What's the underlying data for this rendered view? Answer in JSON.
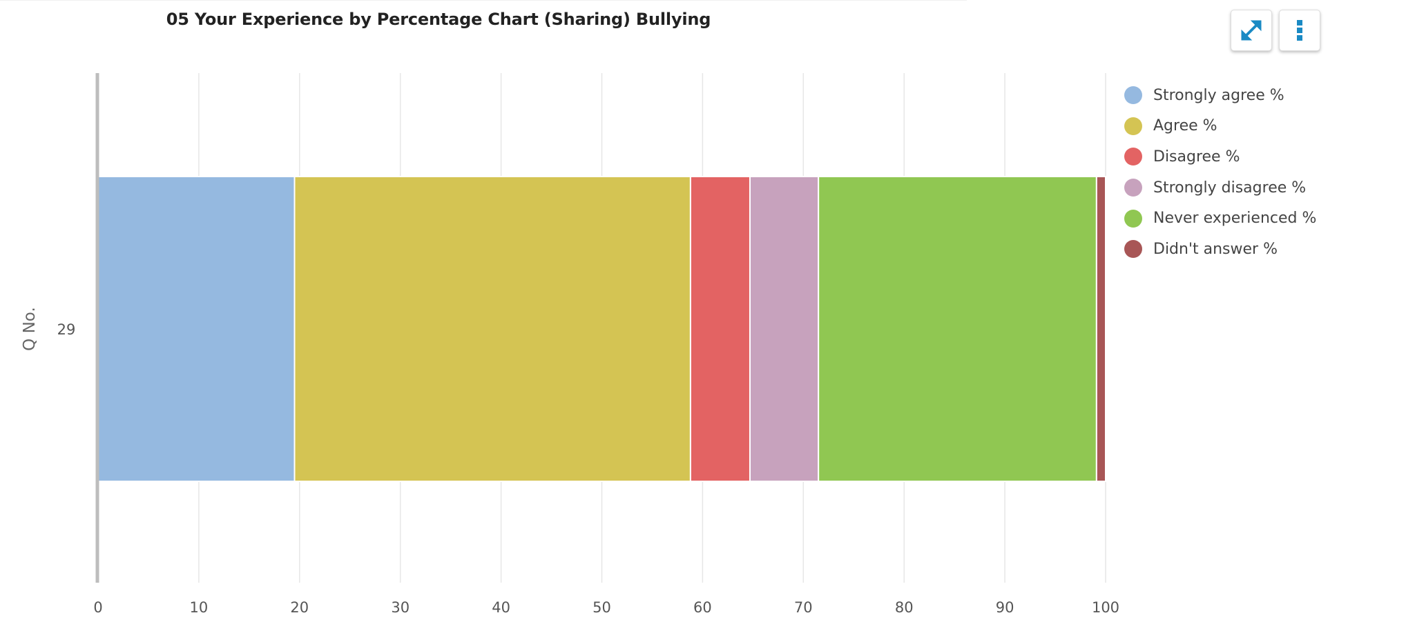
{
  "chart_data": {
    "type": "bar",
    "orientation": "horizontal",
    "stacked": true,
    "title": "05 Your Experience by Percentage Chart (Sharing) Bullying",
    "ylabel": "Q No.",
    "xlabel": "",
    "categories": [
      "29"
    ],
    "xlim": [
      0,
      100
    ],
    "xticks": [
      0,
      10,
      20,
      30,
      40,
      50,
      60,
      70,
      80,
      90,
      100
    ],
    "grid": true,
    "legend_position": "top-right",
    "series": [
      {
        "name": "Strongly agree %",
        "color": "#95b9e0",
        "values": [
          19.5
        ]
      },
      {
        "name": "Agree %",
        "color": "#d4c453",
        "values": [
          39.3
        ]
      },
      {
        "name": "Disagree %",
        "color": "#e36363",
        "values": [
          5.9
        ]
      },
      {
        "name": "Strongly disagree %",
        "color": "#c7a2bd",
        "values": [
          6.8
        ]
      },
      {
        "name": "Never experienced %",
        "color": "#90c752",
        "values": [
          27.6
        ]
      },
      {
        "name": "Didn't answer %",
        "color": "#a85656",
        "values": [
          0.9
        ]
      }
    ]
  },
  "toolbar": {
    "expand_icon": "expand-arrows-icon",
    "menu_icon": "vertical-dots-icon",
    "icon_color": "#1a8ac4"
  }
}
